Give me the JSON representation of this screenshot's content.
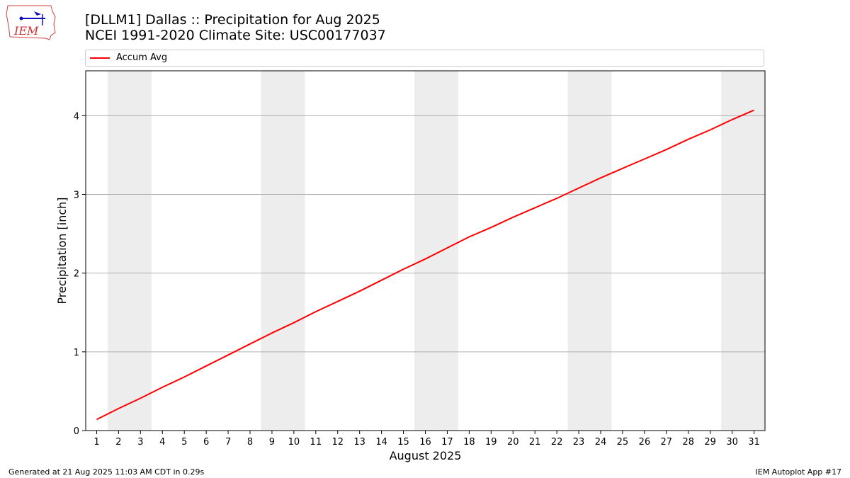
{
  "header": {
    "title_line1": "[DLLM1] Dallas :: Precipitation for Aug 2025",
    "title_line2": "NCEI 1991-2020 Climate Site: USC00177037",
    "logo_text": "IEM"
  },
  "legend": {
    "label": "Accum Avg"
  },
  "footer": {
    "generated": "Generated at 21 Aug 2025 11:03 AM CDT in 0.29s",
    "app": "IEM Autoplot App #17"
  },
  "colors": {
    "line": "#ff0000",
    "weekend_band": "#ededed",
    "grid": "#b0b0b0"
  },
  "chart_data": {
    "type": "line",
    "title": "[DLLM1] Dallas :: Precipitation for Aug 2025",
    "subtitle": "NCEI 1991-2020 Climate Site: USC00177037",
    "xlabel": "August 2025",
    "ylabel": "Precipitation [inch]",
    "xlim": [
      0.5,
      31.5
    ],
    "ylim": [
      0,
      4.57
    ],
    "x": [
      1,
      2,
      3,
      4,
      5,
      6,
      7,
      8,
      9,
      10,
      11,
      12,
      13,
      14,
      15,
      16,
      17,
      18,
      19,
      20,
      21,
      22,
      23,
      24,
      25,
      26,
      27,
      28,
      29,
      30,
      31
    ],
    "x_tick_labels": [
      "1",
      "2",
      "3",
      "4",
      "5",
      "6",
      "7",
      "8",
      "9",
      "10",
      "11",
      "12",
      "13",
      "14",
      "15",
      "16",
      "17",
      "18",
      "19",
      "20",
      "21",
      "22",
      "23",
      "24",
      "25",
      "26",
      "27",
      "28",
      "29",
      "30",
      "31"
    ],
    "y_ticks": [
      0,
      1,
      2,
      3,
      4
    ],
    "y_tick_labels": [
      "0",
      "1",
      "2",
      "3",
      "4"
    ],
    "grid": "horizontal",
    "legend_position": "top",
    "weekend_bands": [
      [
        1.5,
        3.5
      ],
      [
        8.5,
        10.5
      ],
      [
        15.5,
        17.5
      ],
      [
        22.5,
        24.5
      ],
      [
        29.5,
        31.5
      ]
    ],
    "series": [
      {
        "name": "Accum Avg",
        "color": "#ff0000",
        "values": [
          0.14,
          0.28,
          0.41,
          0.55,
          0.68,
          0.82,
          0.96,
          1.1,
          1.24,
          1.37,
          1.51,
          1.64,
          1.77,
          1.91,
          2.05,
          2.18,
          2.32,
          2.46,
          2.58,
          2.71,
          2.83,
          2.95,
          3.08,
          3.21,
          3.33,
          3.45,
          3.57,
          3.7,
          3.82,
          3.95,
          4.07
        ]
      }
    ]
  }
}
